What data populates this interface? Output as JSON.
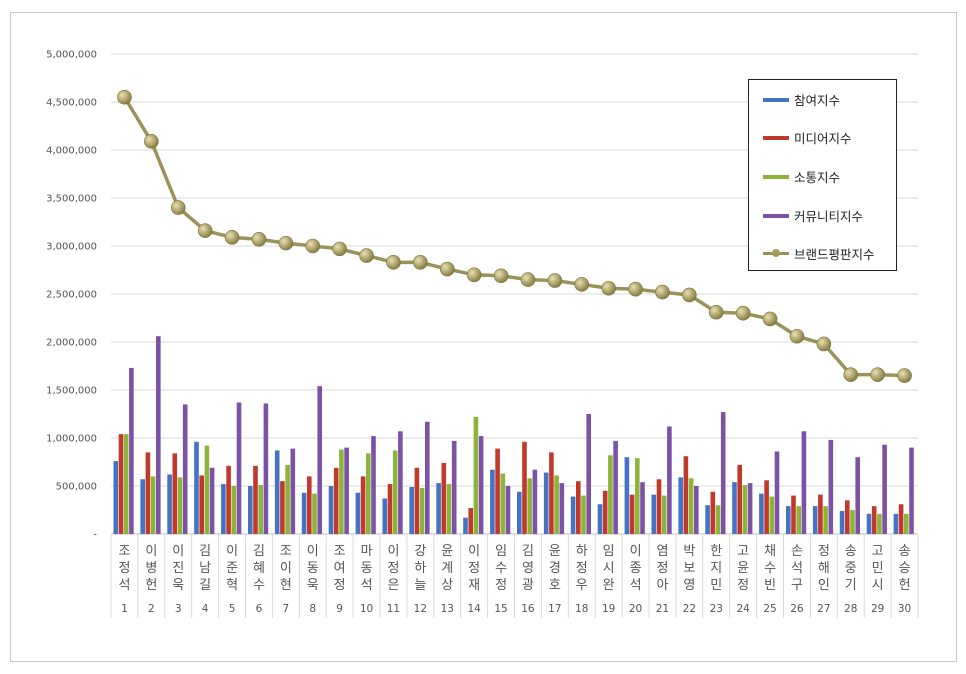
{
  "chart_data": {
    "type": "bar+line",
    "title": "",
    "xlabel": "",
    "ylabel": "",
    "ylim": [
      0,
      5000000
    ],
    "yticks": [
      "-",
      "500,000",
      "1,000,000",
      "1,500,000",
      "2,000,000",
      "2,500,000",
      "3,000,000",
      "3,500,000",
      "4,000,000",
      "4,500,000",
      "5,000,000"
    ],
    "grid": true,
    "legend_position": "top-right",
    "ranks": [
      "1",
      "2",
      "3",
      "4",
      "5",
      "6",
      "7",
      "8",
      "9",
      "10",
      "11",
      "12",
      "13",
      "14",
      "15",
      "16",
      "17",
      "18",
      "19",
      "20",
      "21",
      "22",
      "23",
      "24",
      "25",
      "26",
      "27",
      "28",
      "29",
      "30"
    ],
    "categories": [
      "조정석",
      "이병헌",
      "이진욱",
      "김남길",
      "이준혁",
      "김혜수",
      "조이현",
      "이동욱",
      "조여정",
      "마동석",
      "이정은",
      "강하늘",
      "윤계상",
      "이정재",
      "임수정",
      "김영광",
      "윤경호",
      "하정우",
      "임시완",
      "이종석",
      "염정아",
      "박보영",
      "한지민",
      "고윤정",
      "채수빈",
      "손석구",
      "정해인",
      "송중기",
      "고민시",
      "송승헌"
    ],
    "series": [
      {
        "name": "참여지수",
        "type": "bar",
        "color": "#4472c4",
        "values": [
          760000,
          570000,
          620000,
          960000,
          520000,
          500000,
          870000,
          430000,
          500000,
          430000,
          370000,
          490000,
          530000,
          170000,
          670000,
          440000,
          640000,
          390000,
          310000,
          800000,
          410000,
          590000,
          300000,
          540000,
          420000,
          290000,
          290000,
          240000,
          210000,
          210000
        ]
      },
      {
        "name": "미디어지수",
        "type": "bar",
        "color": "#c0392b",
        "values": [
          1040000,
          850000,
          840000,
          610000,
          710000,
          710000,
          550000,
          600000,
          690000,
          600000,
          520000,
          690000,
          740000,
          270000,
          890000,
          960000,
          850000,
          550000,
          450000,
          410000,
          570000,
          810000,
          440000,
          720000,
          560000,
          400000,
          410000,
          350000,
          290000,
          310000
        ]
      },
      {
        "name": "소통지수",
        "type": "bar",
        "color": "#8db33a",
        "values": [
          1040000,
          600000,
          590000,
          920000,
          500000,
          510000,
          720000,
          420000,
          880000,
          840000,
          870000,
          480000,
          520000,
          1220000,
          630000,
          580000,
          610000,
          400000,
          820000,
          790000,
          400000,
          580000,
          300000,
          510000,
          390000,
          290000,
          290000,
          250000,
          210000,
          210000
        ]
      },
      {
        "name": "커뮤니티지수",
        "type": "bar",
        "color": "#7b52a5",
        "values": [
          1730000,
          2060000,
          1350000,
          690000,
          1370000,
          1360000,
          890000,
          1540000,
          900000,
          1020000,
          1070000,
          1170000,
          970000,
          1020000,
          500000,
          670000,
          530000,
          1250000,
          970000,
          540000,
          1120000,
          500000,
          1270000,
          530000,
          860000,
          1070000,
          980000,
          800000,
          930000,
          900000
        ]
      },
      {
        "name": "브랜드평판지수",
        "type": "line",
        "color": "#9b915a",
        "values": [
          4550000,
          4090000,
          3400000,
          3160000,
          3090000,
          3070000,
          3030000,
          3000000,
          2970000,
          2900000,
          2830000,
          2830000,
          2760000,
          2700000,
          2690000,
          2650000,
          2640000,
          2600000,
          2560000,
          2550000,
          2520000,
          2490000,
          2310000,
          2300000,
          2240000,
          2060000,
          1980000,
          1660000,
          1660000,
          1650000
        ]
      }
    ]
  }
}
